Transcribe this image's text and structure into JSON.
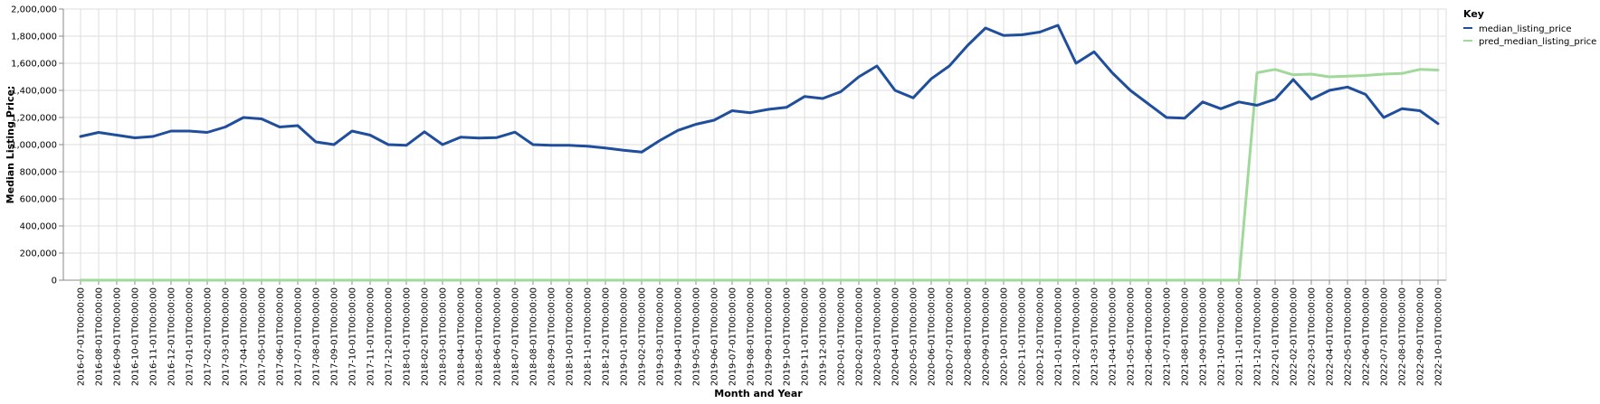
{
  "colors": {
    "series_actual": "#1f4e9c",
    "series_pred": "#a1d99b",
    "grid": "#dddddd",
    "axis": "#888888"
  },
  "chart_data": {
    "type": "line",
    "title": "",
    "xlabel": "Month and Year",
    "ylabel": "Median Listing Price:",
    "ylim": [
      0,
      2000000
    ],
    "yticks": [
      0,
      200000,
      400000,
      600000,
      800000,
      1000000,
      1200000,
      1400000,
      1600000,
      1800000,
      2000000
    ],
    "ytick_labels": [
      "0",
      "200,000",
      "400,000",
      "600,000",
      "800,000",
      "1,000,000",
      "1,200,000",
      "1,400,000",
      "1,600,000",
      "1,800,000",
      "2,000,000"
    ],
    "grid": true,
    "legend": {
      "title": "Key",
      "position": "top-right"
    },
    "x": [
      "2016-07-01T00:00:00",
      "2016-08-01T00:00:00",
      "2016-09-01T00:00:00",
      "2016-10-01T00:00:00",
      "2016-11-01T00:00:00",
      "2016-12-01T00:00:00",
      "2017-01-01T00:00:00",
      "2017-02-01T00:00:00",
      "2017-03-01T00:00:00",
      "2017-04-01T00:00:00",
      "2017-05-01T00:00:00",
      "2017-06-01T00:00:00",
      "2017-07-01T00:00:00",
      "2017-08-01T00:00:00",
      "2017-09-01T00:00:00",
      "2017-10-01T00:00:00",
      "2017-11-01T00:00:00",
      "2017-12-01T00:00:00",
      "2018-01-01T00:00:00",
      "2018-02-01T00:00:00",
      "2018-03-01T00:00:00",
      "2018-04-01T00:00:00",
      "2018-05-01T00:00:00",
      "2018-06-01T00:00:00",
      "2018-07-01T00:00:00",
      "2018-08-01T00:00:00",
      "2018-09-01T00:00:00",
      "2018-10-01T00:00:00",
      "2018-11-01T00:00:00",
      "2018-12-01T00:00:00",
      "2019-01-01T00:00:00",
      "2019-02-01T00:00:00",
      "2019-03-01T00:00:00",
      "2019-04-01T00:00:00",
      "2019-05-01T00:00:00",
      "2019-06-01T00:00:00",
      "2019-07-01T00:00:00",
      "2019-08-01T00:00:00",
      "2019-09-01T00:00:00",
      "2019-10-01T00:00:00",
      "2019-11-01T00:00:00",
      "2019-12-01T00:00:00",
      "2020-01-01T00:00:00",
      "2020-02-01T00:00:00",
      "2020-03-01T00:00:00",
      "2020-04-01T00:00:00",
      "2020-05-01T00:00:00",
      "2020-06-01T00:00:00",
      "2020-07-01T00:00:00",
      "2020-08-01T00:00:00",
      "2020-09-01T00:00:00",
      "2020-10-01T00:00:00",
      "2020-11-01T00:00:00",
      "2020-12-01T00:00:00",
      "2021-01-01T00:00:00",
      "2021-02-01T00:00:00",
      "2021-03-01T00:00:00",
      "2021-04-01T00:00:00",
      "2021-05-01T00:00:00",
      "2021-06-01T00:00:00",
      "2021-07-01T00:00:00",
      "2021-08-01T00:00:00",
      "2021-09-01T00:00:00",
      "2021-10-01T00:00:00",
      "2021-11-01T00:00:00",
      "2021-12-01T00:00:00",
      "2022-01-01T00:00:00",
      "2022-02-01T00:00:00",
      "2022-03-01T00:00:00",
      "2022-04-01T00:00:00",
      "2022-05-01T00:00:00",
      "2022-06-01T00:00:00",
      "2022-07-01T00:00:00",
      "2022-08-01T00:00:00",
      "2022-09-01T00:00:00",
      "2022-10-01T00:00:00"
    ],
    "series": [
      {
        "name": "median_listing_price",
        "color": "#1f4e9c",
        "values": [
          1060000,
          1090000,
          1070000,
          1050000,
          1060000,
          1100000,
          1100000,
          1090000,
          1130000,
          1200000,
          1190000,
          1130000,
          1140000,
          1020000,
          1000000,
          1100000,
          1070000,
          1000000,
          995000,
          1095000,
          1000000,
          1055000,
          1048000,
          1052000,
          1092000,
          1000000,
          995000,
          995000,
          988000,
          975000,
          958000,
          945000,
          1030000,
          1105000,
          1150000,
          1180000,
          1250000,
          1235000,
          1260000,
          1275000,
          1355000,
          1340000,
          1390000,
          1500000,
          1580000,
          1400000,
          1345000,
          1485000,
          1580000,
          1730000,
          1860000,
          1805000,
          1810000,
          1830000,
          1880000,
          1600000,
          1685000,
          1530000,
          1400000,
          1300000,
          1200000,
          1195000,
          1315000,
          1265000,
          1315000,
          1290000,
          1335000,
          1480000,
          1335000,
          1400000,
          1425000,
          1370000,
          1200000,
          1265000,
          1250000,
          1155000
        ]
      },
      {
        "name": "pred_median_listing_price",
        "color": "#a1d99b",
        "values": [
          0,
          0,
          0,
          0,
          0,
          0,
          0,
          0,
          0,
          0,
          0,
          0,
          0,
          0,
          0,
          0,
          0,
          0,
          0,
          0,
          0,
          0,
          0,
          0,
          0,
          0,
          0,
          0,
          0,
          0,
          0,
          0,
          0,
          0,
          0,
          0,
          0,
          0,
          0,
          0,
          0,
          0,
          0,
          0,
          0,
          0,
          0,
          0,
          0,
          0,
          0,
          0,
          0,
          0,
          0,
          0,
          0,
          0,
          0,
          0,
          0,
          0,
          0,
          0,
          0,
          1530000,
          1555000,
          1515000,
          1520000,
          1500000,
          1505000,
          1510000,
          1520000,
          1525000,
          1555000,
          1550000
        ]
      }
    ]
  }
}
